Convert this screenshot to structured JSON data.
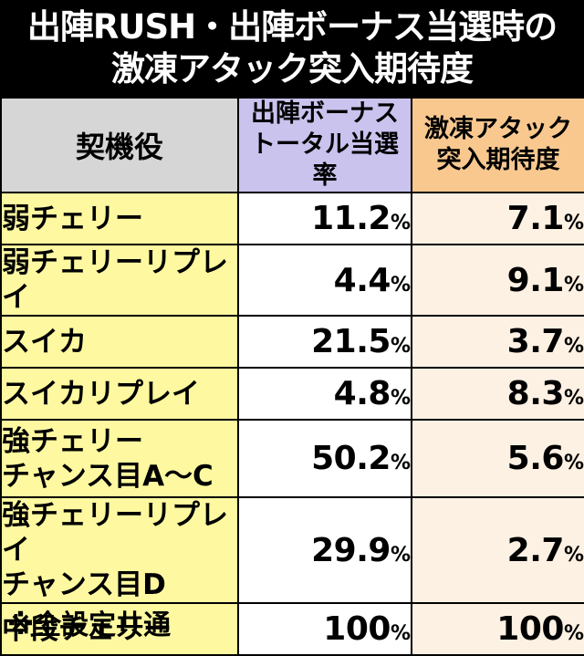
{
  "title": {
    "line1": "出陣RUSH・出陣ボーナス当選時の",
    "line2": "激凍アタック突入期待度"
  },
  "table": {
    "headers": {
      "role": "契機役",
      "bonus_line1": "出陣ボーナス",
      "bonus_line2": "トータル当選率",
      "expect_line1": "激凍アタック",
      "expect_line2": "突入期待度"
    },
    "rows": [
      {
        "role_line1": "弱チェリー",
        "role_line2": "",
        "bonus": "11.2",
        "expect": "7.1"
      },
      {
        "role_line1": "弱チェリーリプレイ",
        "role_line2": "",
        "bonus": "4.4",
        "expect": "9.1"
      },
      {
        "role_line1": "スイカ",
        "role_line2": "",
        "bonus": "21.5",
        "expect": "3.7"
      },
      {
        "role_line1": "スイカリプレイ",
        "role_line2": "",
        "bonus": "4.8",
        "expect": "8.3"
      },
      {
        "role_line1": "強チェリー",
        "role_line2": "チャンス目A～C",
        "bonus": "50.2",
        "expect": "5.6"
      },
      {
        "role_line1": "強チェリーリプレイ",
        "role_line2": "チャンス目D",
        "bonus": "29.9",
        "expect": "2.7"
      },
      {
        "role_line1": "中段チェリー",
        "role_line2": "",
        "bonus": "100",
        "expect": "100"
      }
    ],
    "percent_sign": "%"
  },
  "footnote": "※全設定共通",
  "colors": {
    "title_bg": "#000000",
    "header_role_bg": "#d6d6d6",
    "header_bonus_bg": "#c9c3ee",
    "header_expect_bg": "#f8c88f",
    "role_cell_bg": "#fef9a0",
    "expect_cell_bg": "#fdf1e3"
  }
}
